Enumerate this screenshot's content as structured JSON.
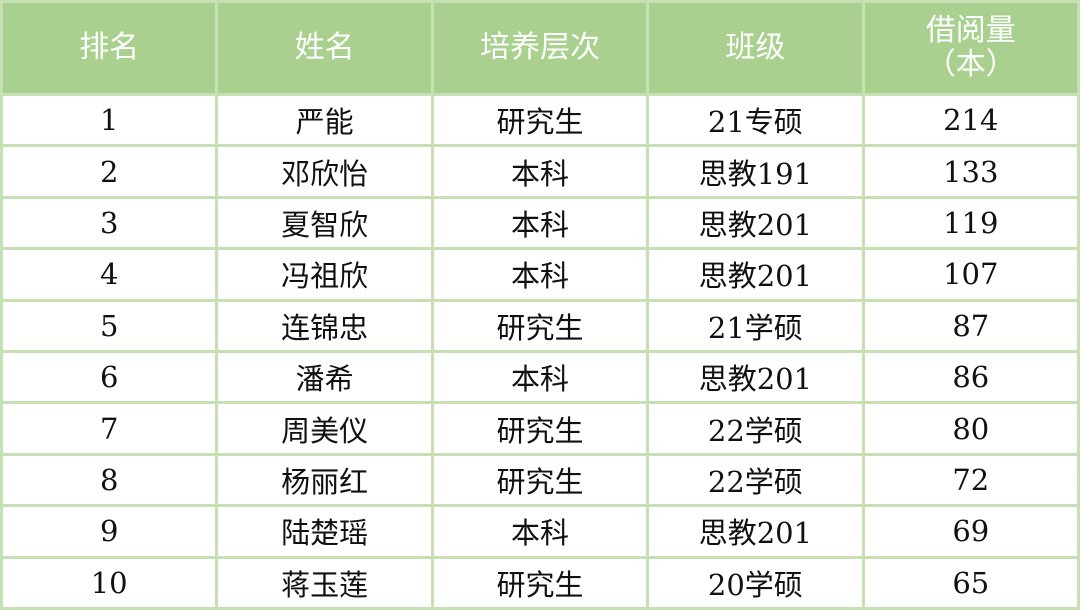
{
  "headers": [
    "排名",
    "姓名",
    "培养层次",
    "班级",
    "借阅量",
    "（本）"
  ],
  "rows": [
    [
      "1",
      "严能",
      "研究生",
      "21专硕",
      "214"
    ],
    [
      "2",
      "邓欣怡",
      "本科",
      "思教191",
      "133"
    ],
    [
      "3",
      "夏智欣",
      "本科",
      "思教201",
      "119"
    ],
    [
      "4",
      "冯祖欣",
      "本科",
      "思教201",
      "107"
    ],
    [
      "5",
      "连锦忠",
      "研究生",
      "21学硕",
      "87"
    ],
    [
      "6",
      "潘希",
      "本科",
      "思教201",
      "86"
    ],
    [
      "7",
      "周美仪",
      "研究生",
      "22学硕",
      "80"
    ],
    [
      "8",
      "杨丽红",
      "研究生",
      "22学硕",
      "72"
    ],
    [
      "9",
      "陆楚瑶",
      "本科",
      "思教201",
      "69"
    ],
    [
      "10",
      "蒋玉莲",
      "研究生",
      "20学硕",
      "65"
    ]
  ],
  "colors": {
    "header_bg": "#a9d08e",
    "border": "#c6e0b4",
    "header_text": "#ffffff"
  }
}
